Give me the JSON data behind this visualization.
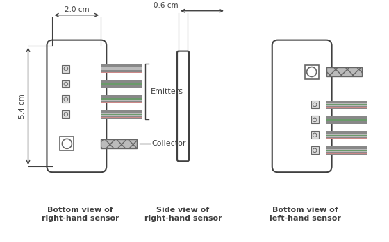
{
  "bg_color": "#ffffff",
  "line_color": "#404040",
  "label1": "Bottom view of\nright-hand sensor",
  "label2": "Side view of\nright-hand sensor",
  "label3": "Bottom view of\nleft-hand sensor",
  "dim1_label": "2.0 cm",
  "dim2_label": "0.6 cm",
  "dim3_label": "5.4 cm",
  "emitter_label": "Emitters",
  "collector_label": "Collector",
  "sensor_fill": "#ffffff",
  "sensor_edge": "#404040",
  "square_fill": "#dddddd",
  "square_edge": "#666666",
  "cable_dark": "#888888",
  "cable_mid": "#bbbbbb",
  "cable_green": "#6a9a6a",
  "cable_pink": "#cc8888",
  "hatch_pattern": "xx"
}
